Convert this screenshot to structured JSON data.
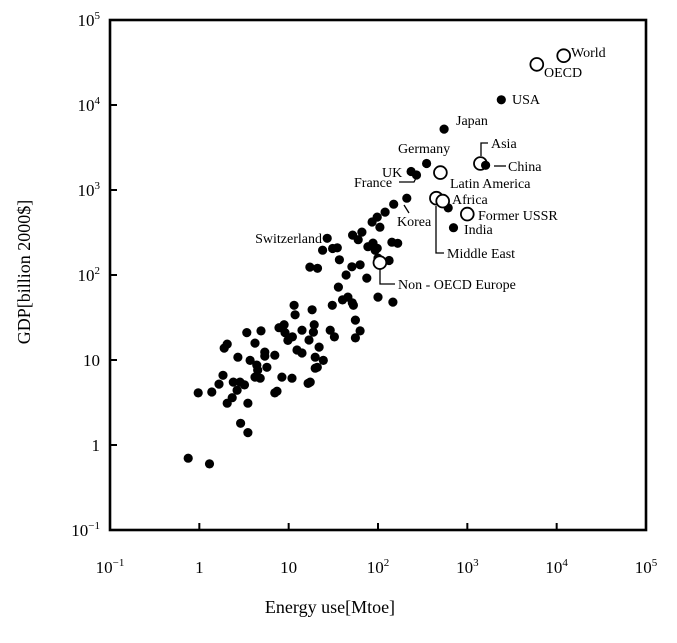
{
  "colors": {
    "background": "#ffffff",
    "ink": "#000000"
  },
  "chart_data": {
    "type": "scatter",
    "title": "",
    "xlabel": "Energy use[Mtoe]",
    "ylabel": "GDP[billion 2000$]",
    "x_scale": "log",
    "y_scale": "log",
    "xlim": [
      0.1,
      100000
    ],
    "ylim": [
      0.1,
      100000
    ],
    "grid": false,
    "x_ticks": [
      {
        "v": 0.1,
        "t": "10",
        "e": "−1"
      },
      {
        "v": 1,
        "t": "1"
      },
      {
        "v": 10,
        "t": "10"
      },
      {
        "v": 100,
        "t": "10",
        "e": "2"
      },
      {
        "v": 1000,
        "t": "10",
        "e": "3"
      },
      {
        "v": 10000,
        "t": "10",
        "e": "4"
      },
      {
        "v": 100000,
        "t": "10",
        "e": "5"
      }
    ],
    "y_ticks": [
      {
        "v": 0.1,
        "t": "10",
        "e": "−1"
      },
      {
        "v": 1,
        "t": "1"
      },
      {
        "v": 10,
        "t": "10"
      },
      {
        "v": 100,
        "t": "10",
        "e": "2"
      },
      {
        "v": 1000,
        "t": "10",
        "e": "3"
      },
      {
        "v": 10000,
        "t": "10",
        "e": "4"
      },
      {
        "v": 100000,
        "t": "10",
        "e": "5"
      }
    ],
    "labeled_points": [
      {
        "label": "World",
        "x": 12000,
        "y": 38000,
        "marker": "open"
      },
      {
        "label": "OECD",
        "x": 6000,
        "y": 30000,
        "marker": "open"
      },
      {
        "label": "USA",
        "x": 2400,
        "y": 11500,
        "marker": "filled"
      },
      {
        "label": "Japan",
        "x": 550,
        "y": 5200,
        "marker": "filled"
      },
      {
        "label": "Germany",
        "x": 350,
        "y": 2050,
        "marker": "filled"
      },
      {
        "label": "UK",
        "x": 235,
        "y": 1650,
        "marker": "filled"
      },
      {
        "label": "France",
        "x": 270,
        "y": 1500,
        "marker": "filled"
      },
      {
        "label": "Asia",
        "x": 1400,
        "y": 2050,
        "marker": "open"
      },
      {
        "label": "China",
        "x": 1600,
        "y": 1950,
        "marker": "filled"
      },
      {
        "label": "Latin America",
        "x": 500,
        "y": 1600,
        "marker": "open"
      },
      {
        "label": "Middle East",
        "x": 450,
        "y": 800,
        "marker": "open"
      },
      {
        "label": "Africa",
        "x": 530,
        "y": 740,
        "marker": "open"
      },
      {
        "label": "Former USSR",
        "x": 1000,
        "y": 520,
        "marker": "open"
      },
      {
        "label": "India",
        "x": 700,
        "y": 360,
        "marker": "filled"
      },
      {
        "label": "Korea",
        "x": 210,
        "y": 800,
        "marker": "filled"
      },
      {
        "label": "Switzerland",
        "x": 27,
        "y": 270,
        "marker": "filled"
      },
      {
        "label": "Non - OECD Europe",
        "x": 105,
        "y": 140,
        "marker": "open"
      }
    ],
    "unlabeled_points": [
      [
        0.75,
        0.7
      ],
      [
        1.3,
        0.6
      ],
      [
        0.97,
        4.1
      ],
      [
        1.38,
        4.2
      ],
      [
        1.66,
        5.2
      ],
      [
        1.84,
        6.6
      ],
      [
        1.9,
        13.8
      ],
      [
        2.05,
        3.1
      ],
      [
        2.05,
        15.4
      ],
      [
        2.33,
        3.6
      ],
      [
        2.4,
        5.5
      ],
      [
        2.65,
        4.4
      ],
      [
        2.7,
        10.8
      ],
      [
        2.85,
        5.5
      ],
      [
        2.9,
        1.8
      ],
      [
        3.2,
        5.1
      ],
      [
        3.4,
        21
      ],
      [
        3.5,
        1.4
      ],
      [
        3.5,
        3.1
      ],
      [
        3.7,
        9.9
      ],
      [
        4.2,
        6.3
      ],
      [
        4.2,
        15.8
      ],
      [
        4.4,
        8.7
      ],
      [
        4.5,
        7.6
      ],
      [
        4.8,
        6.1
      ],
      [
        4.9,
        22
      ],
      [
        5.4,
        11.1
      ],
      [
        5.4,
        12.4
      ],
      [
        5.7,
        8.2
      ],
      [
        7,
        4.1
      ],
      [
        7,
        11.4
      ],
      [
        7.4,
        4.3
      ],
      [
        7.8,
        24
      ],
      [
        8.4,
        6.3
      ],
      [
        8.9,
        26
      ],
      [
        9.1,
        21
      ],
      [
        9.8,
        17
      ],
      [
        10.9,
        6.1
      ],
      [
        11,
        18.7
      ],
      [
        11.5,
        44
      ],
      [
        11.8,
        34
      ],
      [
        12.4,
        13.1
      ],
      [
        14.1,
        12.1
      ],
      [
        14.1,
        22.4
      ],
      [
        16.5,
        5.3
      ],
      [
        16.9,
        17.2
      ],
      [
        17.3,
        124
      ],
      [
        17.4,
        5.5
      ],
      [
        18.3,
        39
      ],
      [
        18.9,
        21.3
      ],
      [
        19.3,
        26
      ],
      [
        19.8,
        10.8
      ],
      [
        19.8,
        8
      ],
      [
        20.9,
        8.2
      ],
      [
        21,
        120
      ],
      [
        21.9,
        14.2
      ],
      [
        24.4,
        9.9
      ],
      [
        24,
        196
      ],
      [
        29.2,
        22.4
      ],
      [
        30.8,
        44
      ],
      [
        31,
        205
      ],
      [
        32.5,
        18.7
      ],
      [
        35,
        209
      ],
      [
        36,
        72
      ],
      [
        37,
        151
      ],
      [
        40,
        51
      ],
      [
        44,
        100
      ],
      [
        46,
        55
      ],
      [
        51,
        125
      ],
      [
        51.6,
        47
      ],
      [
        52,
        295
      ],
      [
        53,
        44
      ],
      [
        55.8,
        29.5
      ],
      [
        55.8,
        18.2
      ],
      [
        60,
        260
      ],
      [
        63,
        132
      ],
      [
        63,
        22
      ],
      [
        66,
        320
      ],
      [
        75,
        92
      ],
      [
        77,
        215
      ],
      [
        86,
        420
      ],
      [
        88,
        237
      ],
      [
        93,
        195
      ],
      [
        98,
        206
      ],
      [
        98,
        480
      ],
      [
        100,
        55
      ],
      [
        100,
        158
      ],
      [
        105,
        365
      ],
      [
        120,
        550
      ],
      [
        133,
        148
      ],
      [
        143,
        243
      ],
      [
        147,
        48
      ],
      [
        150,
        680
      ],
      [
        166,
        236
      ],
      [
        610,
        615
      ]
    ]
  }
}
